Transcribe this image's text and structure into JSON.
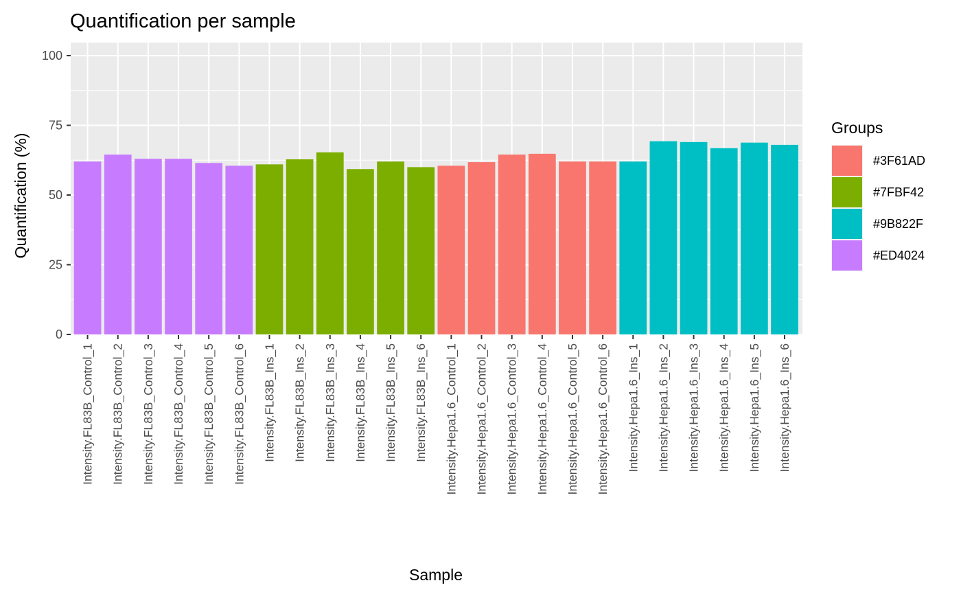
{
  "chart_data": {
    "type": "bar",
    "title": "Quantification per sample",
    "xlabel": "Sample",
    "ylabel": "Quantification (%)",
    "ylim": [
      0,
      100
    ],
    "yticks": [
      0,
      25,
      50,
      75,
      100
    ],
    "grid": true,
    "legend": {
      "title": "Groups",
      "placement": "right"
    },
    "groups": [
      {
        "name": "#3F61AD",
        "color": "#F8766D"
      },
      {
        "name": "#7FBF42",
        "color": "#7CAE00"
      },
      {
        "name": "#9B822F",
        "color": "#00BFC4"
      },
      {
        "name": "#ED4024",
        "color": "#C77CFF"
      }
    ],
    "categories": [
      "Intensity.FL83B_Control_1",
      "Intensity.FL83B_Control_2",
      "Intensity.FL83B_Control_3",
      "Intensity.FL83B_Control_4",
      "Intensity.FL83B_Control_5",
      "Intensity.FL83B_Control_6",
      "Intensity.FL83B_Ins_1",
      "Intensity.FL83B_Ins_2",
      "Intensity.FL83B_Ins_3",
      "Intensity.FL83B_Ins_4",
      "Intensity.FL83B_Ins_5",
      "Intensity.FL83B_Ins_6",
      "Intensity.Hepa1.6_Control_1",
      "Intensity.Hepa1.6_Control_2",
      "Intensity.Hepa1.6_Control_3",
      "Intensity.Hepa1.6_Control_4",
      "Intensity.Hepa1.6_Control_5",
      "Intensity.Hepa1.6_Control_6",
      "Intensity.Hepa1.6_Ins_1",
      "Intensity.Hepa1.6_Ins_2",
      "Intensity.Hepa1.6_Ins_3",
      "Intensity.Hepa1.6_Ins_4",
      "Intensity.Hepa1.6_Ins_5",
      "Intensity.Hepa1.6_Ins_6"
    ],
    "values": [
      62,
      64.5,
      63,
      63,
      61.5,
      60.5,
      61,
      62.8,
      65.3,
      59.3,
      62,
      60,
      60.5,
      61.8,
      64.5,
      64.8,
      62,
      62,
      62,
      69.3,
      69,
      66.8,
      68.8,
      68
    ],
    "group_of_category": [
      "#ED4024",
      "#ED4024",
      "#ED4024",
      "#ED4024",
      "#ED4024",
      "#ED4024",
      "#7FBF42",
      "#7FBF42",
      "#7FBF42",
      "#7FBF42",
      "#7FBF42",
      "#7FBF42",
      "#3F61AD",
      "#3F61AD",
      "#3F61AD",
      "#3F61AD",
      "#3F61AD",
      "#3F61AD",
      "#9B822F",
      "#9B822F",
      "#9B822F",
      "#9B822F",
      "#9B822F",
      "#9B822F"
    ]
  }
}
